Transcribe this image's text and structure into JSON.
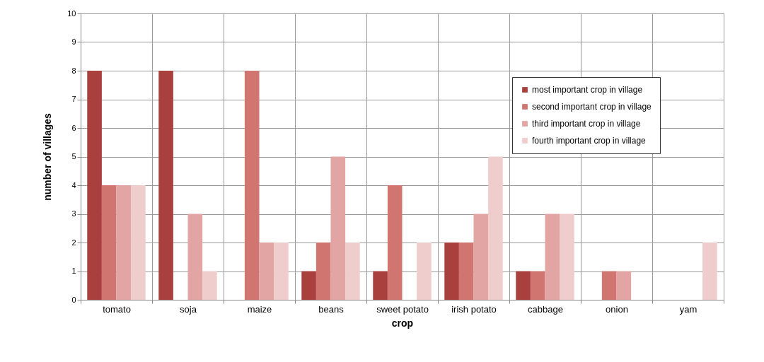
{
  "chart_data": {
    "type": "bar",
    "xlabel": "crop",
    "ylabel": "number of villages",
    "categories": [
      "tomato",
      "soja",
      "maize",
      "beans",
      "sweet potato",
      "irish potato",
      "cabbage",
      "onion",
      "yam"
    ],
    "series": [
      {
        "name": "most important crop in village",
        "color": "#a9403d",
        "values": [
          8,
          8,
          0,
          1,
          1,
          2,
          1,
          0,
          0
        ]
      },
      {
        "name": "second important crop in village",
        "color": "#d0756f",
        "values": [
          4,
          0,
          8,
          2,
          4,
          2,
          1,
          1,
          0
        ]
      },
      {
        "name": "third important crop in village",
        "color": "#e2a5a3",
        "values": [
          4,
          3,
          2,
          5,
          0,
          3,
          3,
          1,
          0
        ]
      },
      {
        "name": "fourth important crop in village",
        "color": "#efcdcc",
        "values": [
          4,
          1,
          2,
          2,
          2,
          5,
          3,
          0,
          2
        ]
      }
    ],
    "ylim": [
      0,
      10
    ],
    "yticks": [
      0,
      1,
      2,
      3,
      4,
      5,
      6,
      7,
      8,
      9,
      10
    ],
    "grid": true,
    "legend": "top right"
  }
}
